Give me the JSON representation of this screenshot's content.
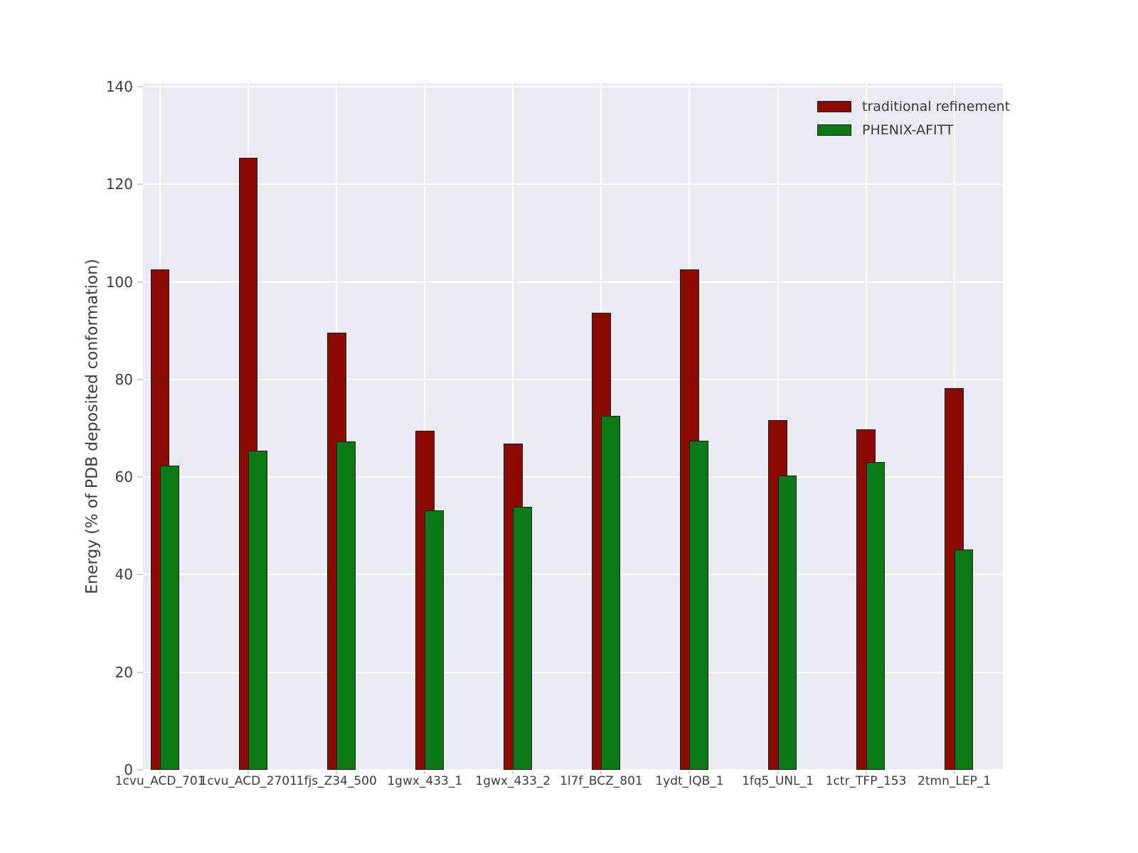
{
  "figure": {
    "background": "#ffffff",
    "plot_background": "#eaeaf2",
    "grid_color": "#ffffff",
    "tick_text_color": "#3c3c3c",
    "bar_edge_color": "#1a1a1a"
  },
  "chart_data": {
    "type": "bar",
    "title": "",
    "xlabel": "",
    "ylabel": "Energy (% of PDB deposited conformation)",
    "ylim": [
      0,
      140
    ],
    "yticks": [
      0,
      20,
      40,
      60,
      80,
      100,
      120,
      140
    ],
    "grid": true,
    "legend_position": "upper right",
    "categories": [
      "1cvu_ACD_701",
      "1cvu_ACD_2701",
      "1fjs_Z34_500",
      "1gwx_433_1",
      "1gwx_433_2",
      "1l7f_BCZ_801",
      "1ydt_IQB_1",
      "1fq5_UNL_1",
      "1ctr_TFP_153",
      "2tmn_LEP_1"
    ],
    "series": [
      {
        "name": "traditional refinement",
        "color": "#8b0a02",
        "values": [
          102.6,
          125.5,
          89.6,
          69.5,
          66.9,
          93.7,
          102.6,
          71.7,
          69.8,
          78.3
        ]
      },
      {
        "name": "PHENIX-AFITT",
        "color": "#0b7a14",
        "values": [
          62.4,
          65.4,
          67.3,
          53.2,
          53.9,
          72.5,
          67.5,
          60.3,
          63.1,
          45.2
        ]
      }
    ]
  }
}
